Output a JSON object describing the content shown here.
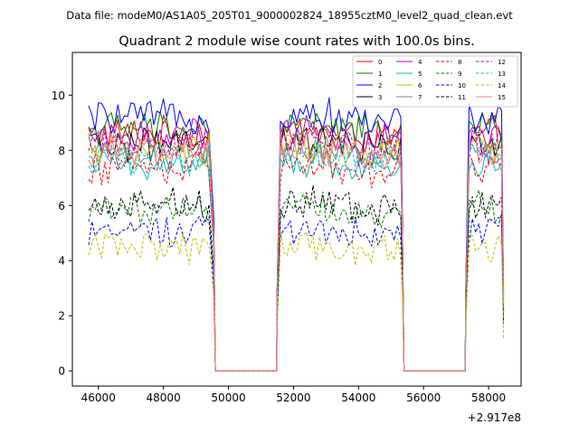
{
  "file_label": "Data file: modeM0/AS1A05_205T01_9000002824_18955cztM0_level2_quad_clean.evt",
  "chart_data": {
    "type": "line",
    "title": "Quadrant 2 module wise count rates with 100.0s bins.",
    "xlabel": "",
    "ylabel": "",
    "x_offset_label": "+2.917e8",
    "xlim": [
      45200,
      59000
    ],
    "ylim": [
      -0.55,
      11.55
    ],
    "x_ticks": [
      46000,
      48000,
      50000,
      52000,
      54000,
      56000,
      58000
    ],
    "x_tick_labels": [
      "46000",
      "48000",
      "50000",
      "52000",
      "54000",
      "56000",
      "58000"
    ],
    "y_ticks": [
      0,
      2,
      4,
      6,
      8,
      10
    ],
    "y_tick_labels": [
      "0",
      "2",
      "4",
      "6",
      "8",
      "10"
    ],
    "grid": false,
    "legend_position": "top-right",
    "bin_width": 100,
    "segments": [
      {
        "x_start": 45700,
        "x_end": 49400,
        "rise_end": null,
        "fall_end": 49600
      },
      {
        "x_start": 51500,
        "x_end": 55300,
        "rise_end": 51600,
        "fall_end": 55400
      },
      {
        "x_start": 57300,
        "x_end": 58400,
        "rise_end": 57400,
        "fall_end": null
      }
    ],
    "gap_value": 0,
    "series": [
      {
        "name": "0",
        "color": "#ff0000",
        "style": "solid",
        "mean": 8.6
      },
      {
        "name": "1",
        "color": "#008000",
        "style": "solid",
        "mean": 8.8
      },
      {
        "name": "2",
        "color": "#0000ff",
        "style": "solid",
        "mean": 9.2
      },
      {
        "name": "3",
        "color": "#000000",
        "style": "solid",
        "mean": 8.2
      },
      {
        "name": "4",
        "color": "#bf00bf",
        "style": "solid",
        "mean": 8.5
      },
      {
        "name": "5",
        "color": "#00bfbf",
        "style": "solid",
        "mean": 7.5
      },
      {
        "name": "6",
        "color": "#bfbf00",
        "style": "solid",
        "mean": 8.0
      },
      {
        "name": "7",
        "color": "#808080",
        "style": "solid",
        "mean": 7.9
      },
      {
        "name": "8",
        "color": "#ff0000",
        "style": "dashed",
        "mean": 7.4
      },
      {
        "name": "9",
        "color": "#008000",
        "style": "dashed",
        "mean": 5.9
      },
      {
        "name": "10",
        "color": "#0000ff",
        "style": "dashed",
        "mean": 5.1
      },
      {
        "name": "11",
        "color": "#000000",
        "style": "dashed",
        "mean": 6.0
      },
      {
        "name": "12",
        "color": "#bf00bf",
        "style": "dashed",
        "mean": 8.2
      },
      {
        "name": "13",
        "color": "#00bfbf",
        "style": "dashed",
        "mean": 7.7
      },
      {
        "name": "14",
        "color": "#bfbf00",
        "style": "dashed",
        "mean": 4.5
      },
      {
        "name": "15",
        "color": "#ff7f7f",
        "style": "solid",
        "mean": 8.0
      }
    ]
  }
}
